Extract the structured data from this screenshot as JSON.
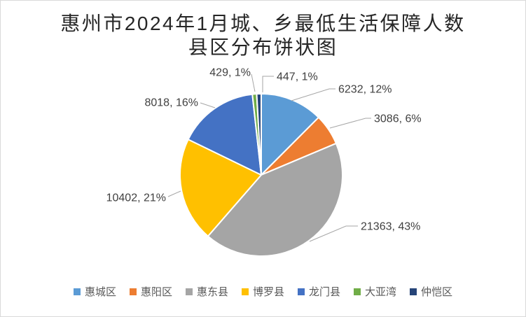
{
  "chart_data": {
    "type": "pie",
    "title_lines": [
      "惠州市2024年1月城、乡最低生活保障人数",
      "县区分布饼状图"
    ],
    "legend_position": "bottom",
    "start_angle_deg": 0,
    "direction": "clockwise",
    "data_label_format": "value, percent",
    "series": [
      {
        "name": "惠城区",
        "value": 6232,
        "percent": "12%",
        "label": "6232, 12%",
        "color": "#5B9BD5"
      },
      {
        "name": "惠阳区",
        "value": 3086,
        "percent": "6%",
        "label": "3086, 6%",
        "color": "#ED7D31"
      },
      {
        "name": "惠东县",
        "value": 21363,
        "percent": "43%",
        "label": "21363, 43%",
        "color": "#A5A5A5"
      },
      {
        "name": "博罗县",
        "value": 10402,
        "percent": "21%",
        "label": "10402, 21%",
        "color": "#FFC000"
      },
      {
        "name": "龙门县",
        "value": 8018,
        "percent": "16%",
        "label": "8018, 16%",
        "color": "#4472C4"
      },
      {
        "name": "大亚湾",
        "value": 429,
        "percent": "1%",
        "label": "429, 1%",
        "color": "#70AD47"
      },
      {
        "name": "仲恺区",
        "value": 447,
        "percent": "1%",
        "label": "447, 1%",
        "color": "#264478"
      }
    ]
  }
}
